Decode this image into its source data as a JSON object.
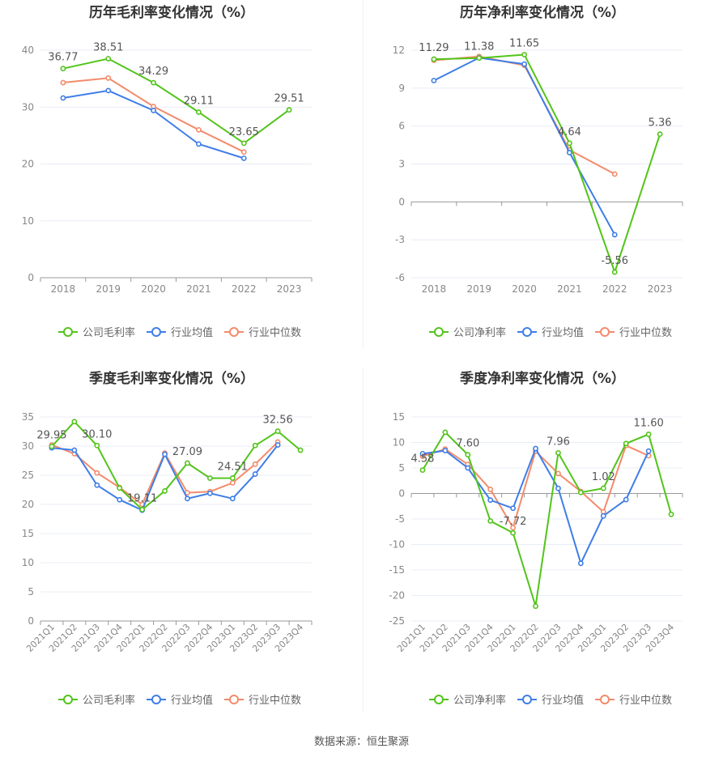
{
  "source_text": "数据来源：恒生聚源",
  "colors": {
    "company": "#52c41a",
    "avg": "#3f7ee8",
    "median": "#f38b6b",
    "grid": "#e8ecf6",
    "axis": "#888888",
    "label": "#555555"
  },
  "chart_data": [
    {
      "type": "line",
      "title": "历年毛利率变化情况（%）",
      "categories": [
        "2018",
        "2019",
        "2020",
        "2021",
        "2022",
        "2023"
      ],
      "ylim": [
        0,
        40
      ],
      "yticks": [
        0,
        10,
        20,
        30,
        40
      ],
      "series": [
        {
          "name": "公司毛利率",
          "key": "company",
          "values": [
            36.77,
            38.51,
            34.29,
            29.11,
            23.65,
            29.51
          ]
        },
        {
          "name": "行业均值",
          "key": "avg",
          "values": [
            31.6,
            32.9,
            29.4,
            23.5,
            21.0,
            null
          ]
        },
        {
          "name": "行业中位数",
          "key": "median",
          "values": [
            34.3,
            35.1,
            30.1,
            26.0,
            22.1,
            null
          ]
        }
      ],
      "labels": [
        {
          "index": 0,
          "value": 36.77,
          "text": "36.77"
        },
        {
          "index": 1,
          "value": 38.51,
          "text": "38.51"
        },
        {
          "index": 2,
          "value": 34.29,
          "text": "34.29"
        },
        {
          "index": 3,
          "value": 29.11,
          "text": "29.11"
        },
        {
          "index": 4,
          "value": 23.65,
          "text": "23.65"
        },
        {
          "index": 5,
          "value": 29.51,
          "text": "29.51"
        }
      ]
    },
    {
      "type": "line",
      "title": "历年净利率变化情况（%）",
      "categories": [
        "2018",
        "2019",
        "2020",
        "2021",
        "2022",
        "2023"
      ],
      "ylim": [
        -6,
        12
      ],
      "yticks": [
        -6,
        -3,
        0,
        3,
        6,
        9,
        12
      ],
      "series": [
        {
          "name": "公司净利率",
          "key": "company",
          "values": [
            11.29,
            11.38,
            11.65,
            4.64,
            -5.56,
            5.36
          ]
        },
        {
          "name": "行业均值",
          "key": "avg",
          "values": [
            9.6,
            11.4,
            10.9,
            3.9,
            -2.6,
            null
          ]
        },
        {
          "name": "行业中位数",
          "key": "median",
          "values": [
            11.2,
            11.5,
            10.8,
            4.1,
            2.2,
            null
          ]
        }
      ],
      "labels": [
        {
          "index": 0,
          "value": 11.29,
          "text": "11.29"
        },
        {
          "index": 1,
          "value": 11.38,
          "text": "11.38"
        },
        {
          "index": 2,
          "value": 11.65,
          "text": "11.65"
        },
        {
          "index": 3,
          "value": 4.64,
          "text": "4.64"
        },
        {
          "index": 4,
          "value": -5.56,
          "text": "-5.56"
        },
        {
          "index": 5,
          "value": 5.36,
          "text": "5.36"
        }
      ]
    },
    {
      "type": "line",
      "title": "季度毛利率变化情况（%）",
      "categories": [
        "2021Q1",
        "2021Q2",
        "2021Q3",
        "2021Q4",
        "2022Q1",
        "2022Q2",
        "2022Q3",
        "2022Q4",
        "2023Q1",
        "2023Q2",
        "2023Q3",
        "2023Q4"
      ],
      "ylim": [
        0,
        35
      ],
      "yticks": [
        0,
        5,
        10,
        15,
        20,
        25,
        30,
        35
      ],
      "series": [
        {
          "name": "公司毛利率",
          "key": "company",
          "values": [
            29.95,
            34.2,
            30.1,
            22.8,
            19.11,
            22.3,
            27.09,
            24.5,
            24.51,
            30.1,
            32.56,
            29.3
          ]
        },
        {
          "name": "行业均值",
          "key": "avg",
          "values": [
            29.7,
            29.3,
            23.3,
            20.8,
            19.0,
            28.6,
            21.0,
            21.9,
            21.0,
            25.2,
            30.2,
            null
          ]
        },
        {
          "name": "行业中位数",
          "key": "median",
          "values": [
            30.2,
            28.7,
            25.4,
            22.9,
            20.0,
            28.8,
            22.0,
            22.2,
            23.7,
            26.9,
            30.7,
            null
          ]
        }
      ],
      "labels": [
        {
          "index": 0,
          "value": 29.95,
          "text": "29.95"
        },
        {
          "index": 2,
          "value": 30.1,
          "text": "30.10"
        },
        {
          "index": 4,
          "value": 19.11,
          "text": "19.11"
        },
        {
          "index": 6,
          "value": 27.09,
          "text": "27.09"
        },
        {
          "index": 8,
          "value": 24.51,
          "text": "24.51"
        },
        {
          "index": 10,
          "value": 32.56,
          "text": "32.56"
        }
      ]
    },
    {
      "type": "line",
      "title": "季度净利率变化情况（%）",
      "categories": [
        "2021Q1",
        "2021Q2",
        "2021Q3",
        "2021Q4",
        "2022Q1",
        "2022Q2",
        "2022Q3",
        "2022Q4",
        "2023Q1",
        "2023Q2",
        "2023Q3",
        "2023Q4"
      ],
      "ylim": [
        -25,
        15
      ],
      "yticks": [
        -25,
        -20,
        -15,
        -10,
        -5,
        0,
        5,
        10,
        15
      ],
      "series": [
        {
          "name": "公司净利率",
          "key": "company",
          "values": [
            4.58,
            12.0,
            7.6,
            -5.4,
            -7.72,
            -22.1,
            7.96,
            0.2,
            1.02,
            9.8,
            11.6,
            -4.1
          ]
        },
        {
          "name": "行业均值",
          "key": "avg",
          "values": [
            7.8,
            8.4,
            5.0,
            -1.3,
            -2.9,
            8.8,
            1.0,
            -13.7,
            -4.4,
            -1.2,
            8.3,
            null
          ]
        },
        {
          "name": "行业中位数",
          "key": "median",
          "values": [
            7.3,
            8.7,
            5.7,
            0.8,
            -6.7,
            8.3,
            3.9,
            0.4,
            -3.6,
            9.4,
            7.4,
            null
          ]
        }
      ],
      "labels": [
        {
          "index": 0,
          "value": 4.58,
          "text": "4.58"
        },
        {
          "index": 2,
          "value": 7.6,
          "text": "7.60"
        },
        {
          "index": 4,
          "value": -7.72,
          "text": "-7.72"
        },
        {
          "index": 6,
          "value": 7.96,
          "text": "7.96"
        },
        {
          "index": 8,
          "value": 1.02,
          "text": "1.02"
        },
        {
          "index": 10,
          "value": 11.6,
          "text": "11.60"
        }
      ]
    }
  ]
}
